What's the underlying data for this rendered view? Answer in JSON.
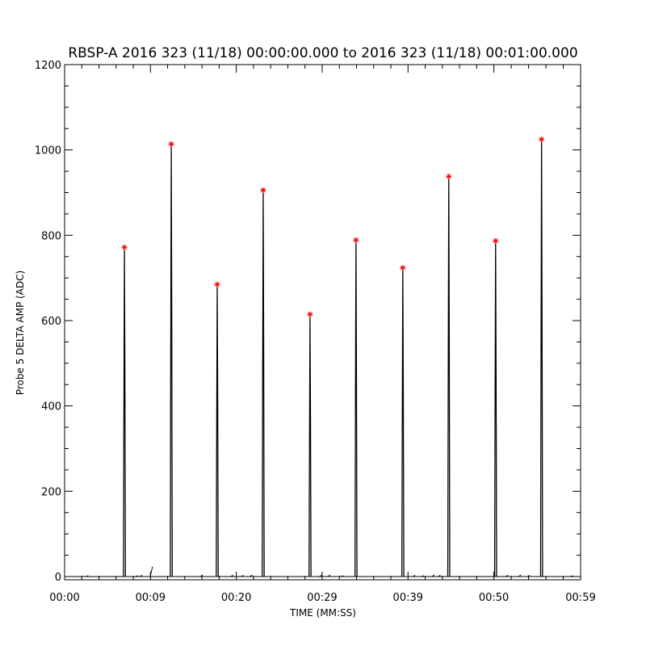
{
  "chart_data": {
    "type": "line",
    "title": "RBSP-A 2016 323 (11/18) 00:00:00.000 to 2016 323 (11/18) 00:01:00.000",
    "xlabel": "TIME (MM:SS)",
    "ylabel": "Probe 5 DELTA AMP (ADC)",
    "xlim": [
      0,
      59.5
    ],
    "ylim": [
      0,
      1200
    ],
    "x_ticks": [
      {
        "value": 0,
        "label": "00:00"
      },
      {
        "value": 9.9,
        "label": "00:09"
      },
      {
        "value": 19.8,
        "label": "00:20"
      },
      {
        "value": 29.7,
        "label": "00:29"
      },
      {
        "value": 39.6,
        "label": "00:39"
      },
      {
        "value": 49.5,
        "label": "00:50"
      },
      {
        "value": 59.5,
        "label": "00:59"
      }
    ],
    "y_ticks": [
      0,
      200,
      400,
      600,
      800,
      1000,
      1200
    ],
    "grid": false,
    "legend": "none",
    "series": [
      {
        "line_color": "#000000",
        "marker_color": "#ff0000",
        "marker": "asterisk",
        "peaks": [
          {
            "x": 6.9,
            "y": 766
          },
          {
            "x": 12.3,
            "y": 1008
          },
          {
            "x": 17.6,
            "y": 679
          },
          {
            "x": 22.9,
            "y": 900
          },
          {
            "x": 28.3,
            "y": 609
          },
          {
            "x": 33.6,
            "y": 783
          },
          {
            "x": 39.0,
            "y": 718
          },
          {
            "x": 44.3,
            "y": 932
          },
          {
            "x": 49.7,
            "y": 781
          },
          {
            "x": 55.0,
            "y": 1019
          }
        ],
        "baseline_noise": [
          {
            "x": 2.6,
            "y": 2
          },
          {
            "x": 8.3,
            "y": 2
          },
          {
            "x": 8.8,
            "y": 3
          },
          {
            "x": 10.0,
            "y": 23
          },
          {
            "x": 15.8,
            "y": 4
          },
          {
            "x": 19.3,
            "y": 3
          },
          {
            "x": 20.5,
            "y": 3
          },
          {
            "x": 21.5,
            "y": 4
          },
          {
            "x": 29.5,
            "y": 3
          },
          {
            "x": 30.5,
            "y": 4
          },
          {
            "x": 32.0,
            "y": 2
          },
          {
            "x": 40.3,
            "y": 3
          },
          {
            "x": 41.3,
            "y": 2
          },
          {
            "x": 42.5,
            "y": 4
          },
          {
            "x": 43.2,
            "y": 3
          },
          {
            "x": 51.0,
            "y": 3
          },
          {
            "x": 52.5,
            "y": 4
          },
          {
            "x": 53.5,
            "y": 3
          },
          {
            "x": 58.5,
            "y": 2
          }
        ]
      }
    ]
  }
}
